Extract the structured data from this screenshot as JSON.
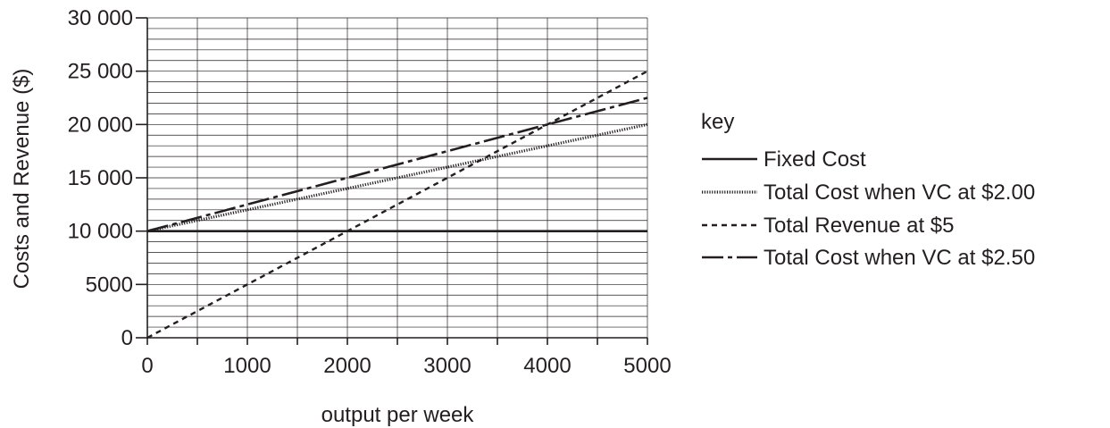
{
  "chart_data": {
    "type": "line",
    "title": "",
    "xlabel": "output per week",
    "ylabel": "Costs and Revenue ($)",
    "xlim": [
      0,
      5000
    ],
    "ylim": [
      0,
      30000
    ],
    "grid": true,
    "x_ticks": [
      0,
      1000,
      2000,
      3000,
      4000,
      5000
    ],
    "x_tick_labels": [
      "0",
      "1000",
      "2000",
      "3000",
      "4000",
      "5000"
    ],
    "y_ticks": [
      0,
      5000,
      10000,
      15000,
      20000,
      25000,
      30000
    ],
    "y_tick_labels": [
      "0",
      "5000",
      "10 000",
      "15 000",
      "20 000",
      "25 000",
      "30 000"
    ],
    "legend_title": "key",
    "legend_position": "right",
    "series": [
      {
        "name": "Fixed Cost",
        "style": "solid",
        "x": [
          0,
          5000
        ],
        "y": [
          10000,
          10000
        ]
      },
      {
        "name": "Total Cost when VC at $2.00",
        "style": "dotted",
        "x": [
          0,
          5000
        ],
        "y": [
          10000,
          20000
        ]
      },
      {
        "name": "Total Revenue at $5",
        "style": "dashed",
        "x": [
          0,
          5000
        ],
        "y": [
          0,
          25000
        ]
      },
      {
        "name": "Total Cost when VC at $2.50",
        "style": "dashdot",
        "x": [
          0,
          5000
        ],
        "y": [
          10000,
          22500
        ]
      }
    ]
  }
}
